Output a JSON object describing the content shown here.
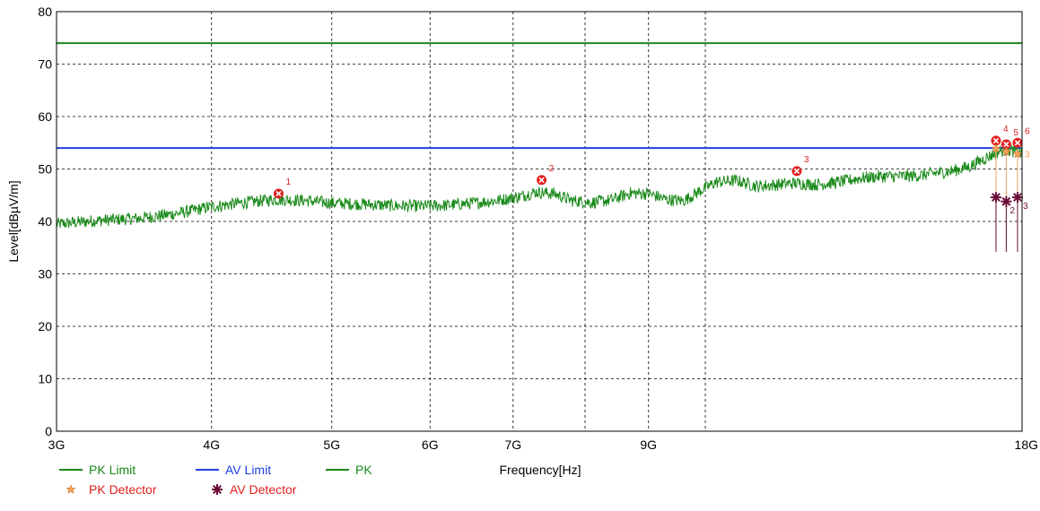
{
  "chart_data": {
    "type": "line",
    "xlabel": "Frequency[Hz]",
    "ylabel": "Level[dBµV/m]",
    "x_scale": "log",
    "xlim": [
      3000000000,
      18000000000
    ],
    "ylim": [
      0,
      80
    ],
    "grid": true,
    "legend_position": "bottom-left",
    "x_ticks": [
      {
        "value": 3000000000,
        "label": "3G"
      },
      {
        "value": 4000000000,
        "label": "4G"
      },
      {
        "value": 5000000000,
        "label": "5G"
      },
      {
        "value": 6000000000,
        "label": "6G"
      },
      {
        "value": 7000000000,
        "label": "7G"
      },
      {
        "value": 8000000000,
        "label": ""
      },
      {
        "value": 9000000000,
        "label": "9G"
      },
      {
        "value": 10000000000,
        "label": ""
      },
      {
        "value": 18000000000,
        "label": "18G"
      }
    ],
    "y_ticks": [
      0,
      10,
      20,
      30,
      40,
      50,
      60,
      70,
      80
    ],
    "series": [
      {
        "name": "PK Limit",
        "kind": "hline",
        "y": 74,
        "color": "#1a8a1a"
      },
      {
        "name": "AV Limit",
        "kind": "hline",
        "y": 54,
        "color": "#1f3fe0"
      },
      {
        "name": "PK",
        "kind": "trace",
        "color": "#1a8a1a",
        "x": [
          3000000000,
          3250000000,
          3500000000,
          3750000000,
          4000000000,
          4250000000,
          4500000000,
          4750000000,
          5000000000,
          5300000000,
          5600000000,
          5900000000,
          6200000000,
          6500000000,
          6800000000,
          7100000000,
          7300000000,
          7550000000,
          7800000000,
          8100000000,
          8400000000,
          8700000000,
          9000000000,
          9300000000,
          9600000000,
          9900000000,
          10200000000,
          10600000000,
          11000000000,
          11400000000,
          11800000000,
          12300000000,
          12800000000,
          13300000000,
          13800000000,
          14300000000,
          14800000000,
          15300000000,
          15800000000,
          16300000000,
          16800000000,
          17300000000,
          17600000000,
          17800000000,
          18000000000
        ],
        "y": [
          39.5,
          40.2,
          40.6,
          41.5,
          42.8,
          43.6,
          44.2,
          44.0,
          43.5,
          43.3,
          43.0,
          42.9,
          43.1,
          43.5,
          44.0,
          44.8,
          45.6,
          45.3,
          44.0,
          43.6,
          44.1,
          45.4,
          45.3,
          44.2,
          43.9,
          45.8,
          47.5,
          47.8,
          46.7,
          47.0,
          47.3,
          47.0,
          47.5,
          48.2,
          48.6,
          48.6,
          48.7,
          49.2,
          49.6,
          50.4,
          52.0,
          53.5,
          53.6,
          53.2,
          53.0
        ]
      }
    ],
    "markers": {
      "peak_points": [
        {
          "label": "1",
          "x": 4530000000,
          "y": 45.3
        },
        {
          "label": "2",
          "x": 7380000000,
          "y": 47.9
        },
        {
          "label": "3",
          "x": 11850000000,
          "y": 49.6
        },
        {
          "label": "4",
          "x": 17150000000,
          "y": 55.4
        },
        {
          "label": "5",
          "x": 17480000000,
          "y": 54.7
        },
        {
          "label": "6",
          "x": 17850000000,
          "y": 55.0
        }
      ],
      "pk_detector": [
        {
          "label": "1",
          "x": 17150000000,
          "y": 53.9
        },
        {
          "label": "2",
          "x": 17480000000,
          "y": 53.3
        },
        {
          "label": "3",
          "x": 17850000000,
          "y": 52.9
        }
      ],
      "av_detector": [
        {
          "label": "1",
          "x": 17150000000,
          "y": 44.6
        },
        {
          "label": "2",
          "x": 17480000000,
          "y": 43.8
        },
        {
          "label": "3",
          "x": 17850000000,
          "y": 44.6
        }
      ]
    },
    "legend": [
      {
        "name": "PK Limit",
        "symbol": "line",
        "color": "#1a8a1a",
        "text_color": "#1a8a1a"
      },
      {
        "name": "AV Limit",
        "symbol": "line",
        "color": "#1f3fe0",
        "text_color": "#1f3fe0"
      },
      {
        "name": "PK",
        "symbol": "line",
        "color": "#1a8a1a",
        "text_color": "#1a8a1a"
      },
      {
        "name": "PK Detector",
        "symbol": "star",
        "color": "#f5a05a",
        "text_color": "#e02020"
      },
      {
        "name": "AV Detector",
        "symbol": "asterisk",
        "color": "#6b0f3a",
        "text_color": "#e02020"
      }
    ]
  },
  "colors": {
    "peak_marker": "#e02020",
    "pk_detector": "#f5a05a",
    "av_detector": "#6b0f3a",
    "grid": "#000000"
  }
}
